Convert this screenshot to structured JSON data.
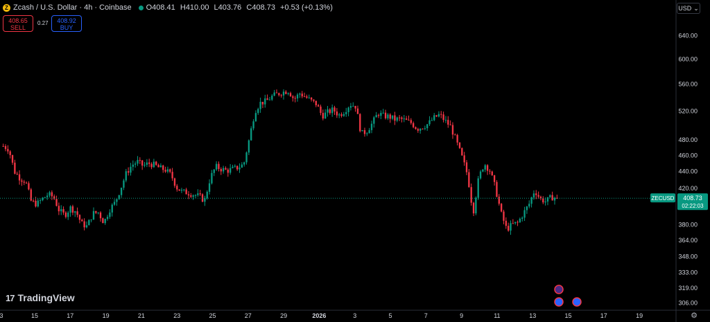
{
  "header": {
    "coin_glyph": "Z",
    "symbol": "Zcash / U.S. Dollar · 4h · Coinbase",
    "o_label": "O",
    "o_value": "408.41",
    "h_label": "H",
    "h_value": "410.00",
    "l_label": "L",
    "l_value": "403.76",
    "c_label": "C",
    "c_value": "408.73",
    "change": "+0.53 (+0.13%)"
  },
  "trade": {
    "sell_price": "408.65",
    "sell_label": "SELL",
    "spread": "0.27",
    "buy_price": "408.92",
    "buy_label": "BUY"
  },
  "currency": {
    "label": "USD",
    "chevron": "⌄"
  },
  "logo": {
    "mark": "17",
    "text": "TradingView"
  },
  "settings_icon": "⚙",
  "colors": {
    "up": "#089981",
    "down": "#f23645",
    "price_line": "#089981",
    "axis_text": "#d1d4dc",
    "background": "#000000"
  },
  "chart_data": {
    "type": "candlestick",
    "symbol": "ZECUSD",
    "interval": "4h",
    "x_ticks": [
      "3",
      "15",
      "17",
      "19",
      "21",
      "23",
      "25",
      "27",
      "29",
      "2026",
      "3",
      "5",
      "7",
      "9",
      "11",
      "13",
      "15",
      "17",
      "19"
    ],
    "y_ticks": [
      640,
      600,
      560,
      520,
      480,
      460,
      440,
      420,
      380,
      364,
      348,
      333,
      319,
      306
    ],
    "y_tick_labels": [
      "640.00",
      "600.00",
      "560.00",
      "520.00",
      "480.00",
      "460.00",
      "440.00",
      "420.00",
      "380.00",
      "364.00",
      "348.00",
      "333.00",
      "319.00",
      "306.00"
    ],
    "y_scale": "log",
    "ylim": [
      300,
      680
    ],
    "last_price": 408.73,
    "last_price_label": "408.73",
    "countdown": "02:22:03",
    "symbol_tag": "ZECUSD",
    "grid": false,
    "close_path": [
      472,
      468,
      440,
      432,
      428,
      405,
      402,
      408,
      413,
      410,
      395,
      390,
      398,
      394,
      381,
      378,
      392,
      393,
      382,
      396,
      404,
      420,
      438,
      448,
      452,
      447,
      450,
      448,
      444,
      442,
      436,
      421,
      416,
      415,
      413,
      411,
      406,
      432,
      446,
      443,
      441,
      443,
      445,
      449,
      482,
      520,
      532,
      534,
      541,
      545,
      548,
      550,
      537,
      546,
      541,
      535,
      530,
      513,
      518,
      522,
      514,
      520,
      530,
      527,
      488,
      492,
      503,
      517,
      513,
      512,
      508,
      509,
      506,
      503,
      495,
      498,
      502,
      510,
      515,
      506,
      498,
      478,
      458,
      436,
      392,
      432,
      450,
      441,
      420,
      392,
      375,
      380,
      382,
      392,
      402,
      418,
      408,
      405,
      410,
      408.73
    ]
  }
}
